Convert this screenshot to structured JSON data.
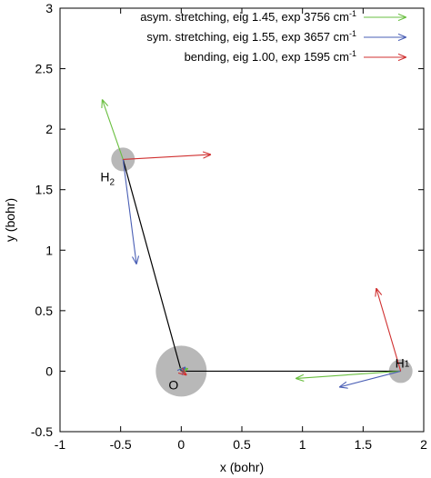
{
  "chart_data": {
    "type": "scatter",
    "xlabel": "x (bohr)",
    "ylabel": "y (bohr)",
    "xlim": [
      -1,
      2
    ],
    "ylim": [
      -0.5,
      3
    ],
    "xticks": [
      "-1",
      "-0.5",
      "0",
      "0.5",
      "1",
      "1.5",
      "2"
    ],
    "yticks": [
      "-0.5",
      "0",
      "0.5",
      "1",
      "1.5",
      "2",
      "2.5",
      "3"
    ],
    "legend_position": "top-right",
    "legend": [
      {
        "text": "asym. stretching, eig 1.45, exp 3756 cm",
        "sup": "-1",
        "color": "#6abf40"
      },
      {
        "text": "sym. stretching, eig 1.55, exp 3657 cm",
        "sup": "-1",
        "color": "#4a5fb5"
      },
      {
        "text": "bending, eig 1.00, exp 1595 cm",
        "sup": "-1",
        "color": "#d03030"
      }
    ],
    "atoms": [
      {
        "label": "O",
        "sub": "",
        "x": 0.0,
        "y": 0.0,
        "size": "large"
      },
      {
        "label": "H",
        "sub": "1",
        "x": 1.81,
        "y": 0.0,
        "size": "small"
      },
      {
        "label": "H",
        "sub": "2",
        "x": -0.48,
        "y": 1.75,
        "size": "small"
      }
    ],
    "bonds": [
      {
        "from": [
          0.0,
          0.0
        ],
        "to": [
          1.81,
          0.0
        ]
      },
      {
        "from": [
          0.0,
          0.0
        ],
        "to": [
          -0.48,
          1.75
        ]
      }
    ],
    "vectors": [
      {
        "mode": "asym",
        "color": "#6abf40",
        "from": [
          -0.48,
          1.75
        ],
        "to": [
          -0.65,
          2.24
        ]
      },
      {
        "mode": "asym",
        "color": "#6abf40",
        "from": [
          1.81,
          0.0
        ],
        "to": [
          0.95,
          -0.06
        ]
      },
      {
        "mode": "asym",
        "color": "#6abf40",
        "from": [
          0.0,
          0.0
        ],
        "to": [
          0.05,
          0.02
        ]
      },
      {
        "mode": "sym",
        "color": "#4a5fb5",
        "from": [
          -0.48,
          1.75
        ],
        "to": [
          -0.37,
          0.89
        ]
      },
      {
        "mode": "sym",
        "color": "#4a5fb5",
        "from": [
          1.81,
          0.0
        ],
        "to": [
          1.31,
          -0.13
        ]
      },
      {
        "mode": "sym",
        "color": "#4a5fb5",
        "from": [
          0.0,
          0.0
        ],
        "to": [
          0.03,
          0.03
        ]
      },
      {
        "mode": "bend",
        "color": "#d03030",
        "from": [
          -0.48,
          1.75
        ],
        "to": [
          0.24,
          1.79
        ]
      },
      {
        "mode": "bend",
        "color": "#d03030",
        "from": [
          1.81,
          0.0
        ],
        "to": [
          1.61,
          0.68
        ]
      },
      {
        "mode": "bend",
        "color": "#d03030",
        "from": [
          0.0,
          0.0
        ],
        "to": [
          0.04,
          -0.03
        ]
      }
    ]
  }
}
